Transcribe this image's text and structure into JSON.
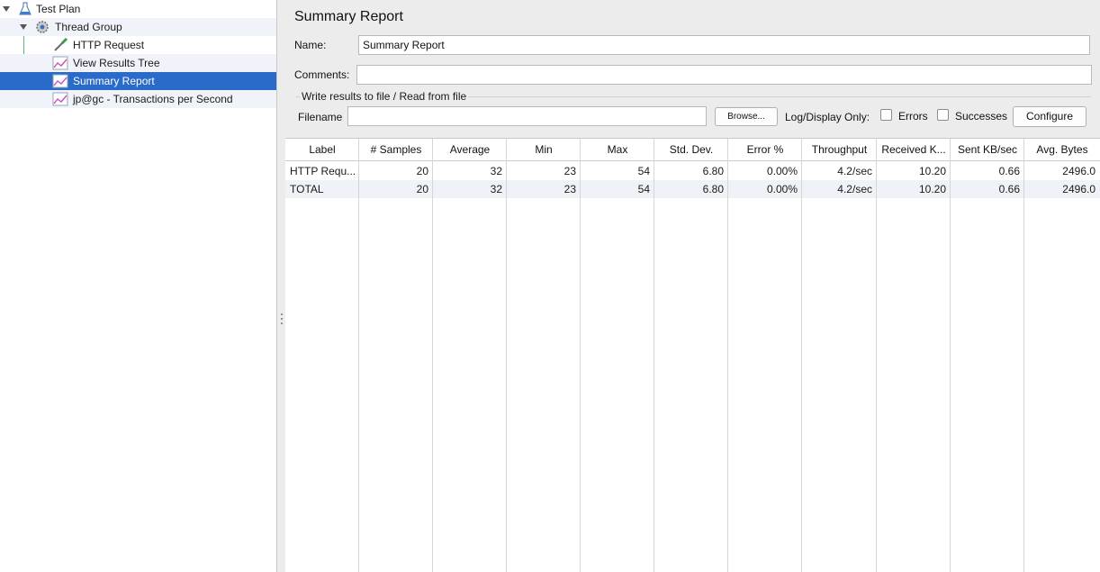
{
  "tree": {
    "items": [
      {
        "label": "Test Plan",
        "icon": "flask-icon"
      },
      {
        "label": "Thread Group",
        "icon": "gear-icon"
      },
      {
        "label": "HTTP Request",
        "icon": "pipette-icon"
      },
      {
        "label": "View Results Tree",
        "icon": "chart-icon"
      },
      {
        "label": "Summary Report",
        "icon": "chart-icon"
      },
      {
        "label": "jp@gc - Transactions per Second",
        "icon": "chart-icon"
      }
    ],
    "selected_index": 4
  },
  "panel": {
    "title": "Summary Report",
    "name_label": "Name:",
    "name_value": "Summary Report",
    "comments_label": "Comments:",
    "comments_value": "",
    "results_group_title": "Write results to file / Read from file",
    "filename_label": "Filename",
    "filename_value": "",
    "browse_label": "Browse...",
    "log_display_label": "Log/Display Only:",
    "errors_label": "Errors",
    "errors_checked": false,
    "successes_label": "Successes",
    "successes_checked": false,
    "configure_label": "Configure"
  },
  "table": {
    "headers": [
      "Label",
      "# Samples",
      "Average",
      "Min",
      "Max",
      "Std. Dev.",
      "Error %",
      "Throughput",
      "Received K...",
      "Sent KB/sec",
      "Avg. Bytes"
    ],
    "rows": [
      [
        "HTTP Requ...",
        "20",
        "32",
        "23",
        "54",
        "6.80",
        "0.00%",
        "4.2/sec",
        "10.20",
        "0.66",
        "2496.0"
      ],
      [
        "TOTAL",
        "20",
        "32",
        "23",
        "54",
        "6.80",
        "0.00%",
        "4.2/sec",
        "10.20",
        "0.66",
        "2496.0"
      ]
    ]
  },
  "colors": {
    "selection": "#2a6ac9",
    "tree_line": "#5fb574",
    "panel_bg": "#ececec"
  }
}
